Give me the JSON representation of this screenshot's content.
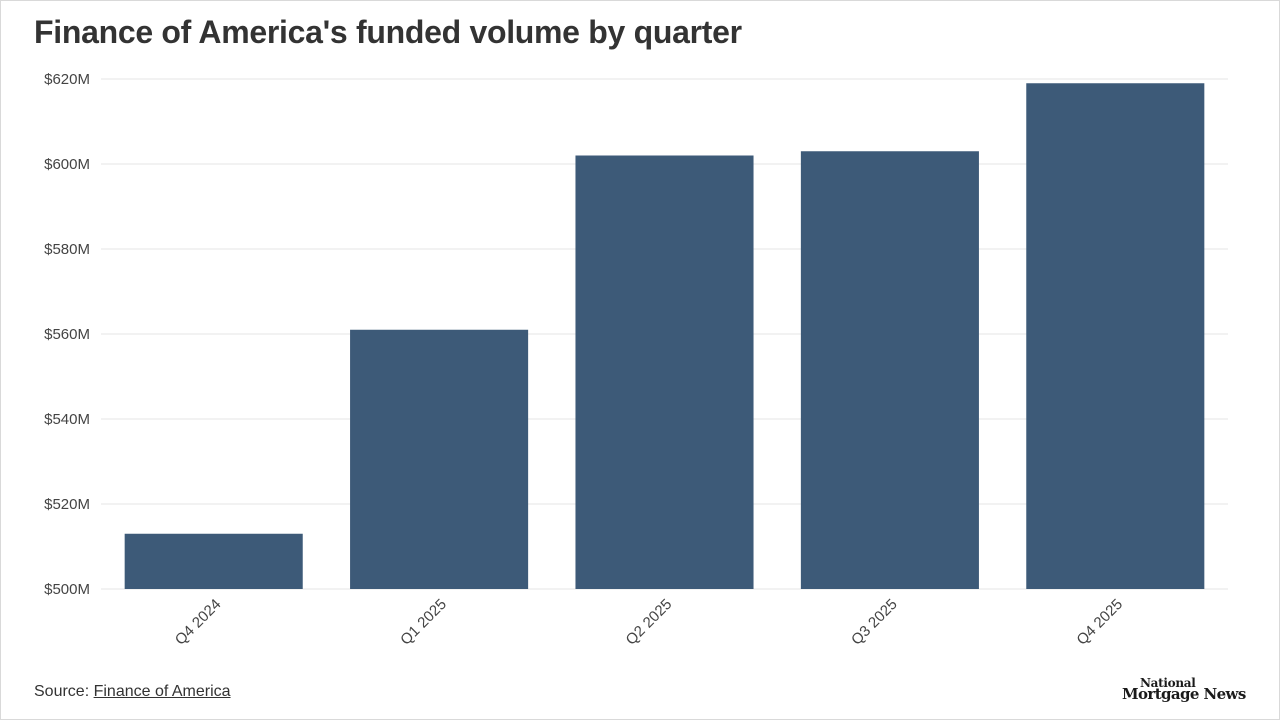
{
  "title": "Finance of America's funded volume by quarter",
  "source": {
    "prefix": "Source: ",
    "link_text": "Finance of America"
  },
  "logo": {
    "line1": "National",
    "line2": "Mortgage News"
  },
  "colors": {
    "bar": "#3d5a78",
    "grid": "#e6e6e6",
    "axis_text": "#444444",
    "title": "#333333"
  },
  "chart_data": {
    "type": "bar",
    "title": "Finance of America's funded volume by quarter",
    "xlabel": "",
    "ylabel": "",
    "categories": [
      "Q4 2024",
      "Q1 2025",
      "Q2 2025",
      "Q3 2025",
      "Q4 2025"
    ],
    "values": [
      513,
      561,
      602,
      603,
      619
    ],
    "unit": "$M",
    "ylim": [
      500,
      620
    ],
    "yticks": [
      500,
      520,
      540,
      560,
      580,
      600,
      620
    ],
    "ytick_labels": [
      "$500M",
      "$520M",
      "$540M",
      "$560M",
      "$580M",
      "$600M",
      "$620M"
    ],
    "grid": true,
    "legend": "none"
  }
}
